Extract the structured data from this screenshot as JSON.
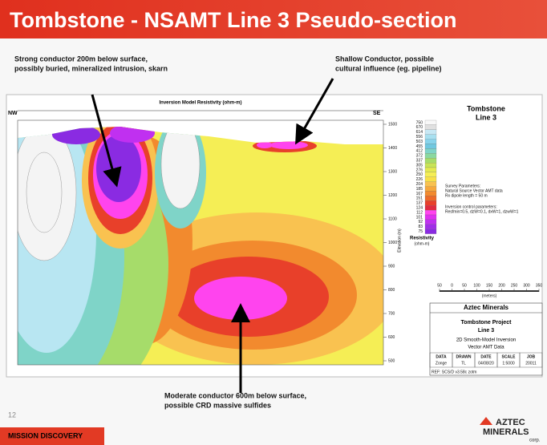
{
  "header": {
    "title": "Tombstone - NSAMT Line 3 Pseudo-section"
  },
  "annotations": {
    "left": [
      "Strong conductor 200m below surface,",
      "possibly buried, mineralized intrusion, skarn"
    ],
    "right": [
      "Shallow Conductor, possible",
      "cultural influence (eg. pipeline)"
    ],
    "bottom": [
      "Moderate conductor 600m below surface,",
      "possible CRD massive sulfides"
    ]
  },
  "figure": {
    "title": "Inversion Model Resistivity (ohm-m)",
    "nw": "NW",
    "se": "SE",
    "elevation_ticks": [
      1500,
      1400,
      1300,
      1200,
      1100,
      1000,
      900,
      800,
      700,
      600,
      500
    ],
    "elevation_label": "Elevation (m)",
    "panel_title": [
      "Tombstone",
      "Line 3"
    ],
    "legend_values": [
      750,
      670,
      614,
      556,
      503,
      455,
      412,
      372,
      337,
      305,
      276,
      250,
      226,
      204,
      185,
      167,
      151,
      137,
      124,
      112,
      101,
      92,
      83,
      75
    ],
    "legend_label": [
      "Resistivity",
      "(ohm-m)"
    ],
    "survey": [
      "Survey Parameters:",
      "Natural Source Vector AMT data",
      "Rx dipole length = 50 m"
    ],
    "inversion": [
      "Inversion control parameters:",
      "Resfmin=0.5, dzW=0.1, dxW=1, dzwW=1"
    ],
    "scale_ticks": [
      50,
      0,
      50,
      100,
      150,
      200,
      250,
      300,
      350
    ],
    "scale_unit": "(meters)",
    "block": {
      "company": "Aztec Minerals",
      "project": "Tombstone Project",
      "line": "Line 3",
      "method": "2D Smooth-Model Inversion",
      "data": "Vector AMT Data",
      "headers": [
        "DATA",
        "DRAWN",
        "DATE",
        "SCALE",
        "JOB"
      ],
      "row": [
        "Zonge",
        "TL",
        "04/08/20",
        "1:5000",
        "20011"
      ],
      "ref": "REF: SCS/D v3.58c zotm"
    }
  },
  "footer": {
    "page": "12",
    "tag": "MISSION DISCOVERY",
    "logo": [
      "AZTEC",
      "MINERALS",
      "corp."
    ]
  }
}
